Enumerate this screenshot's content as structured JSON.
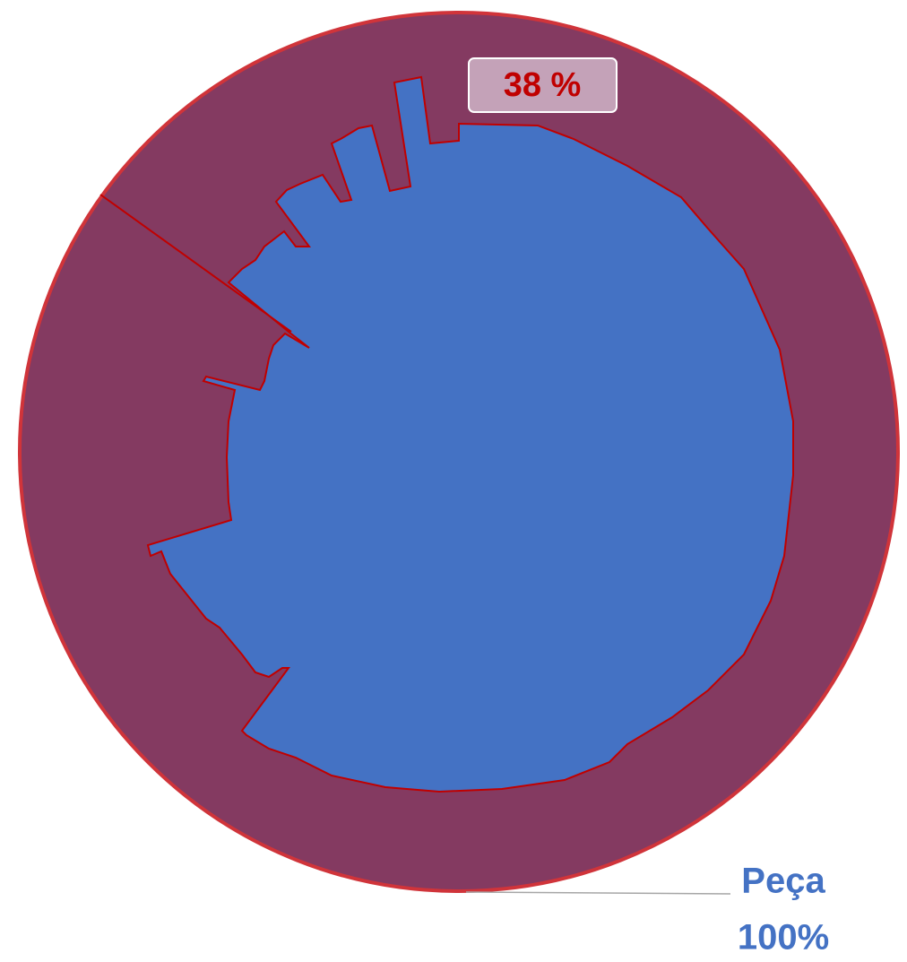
{
  "chart_data": {
    "type": "pie",
    "categories": [
      "Peça"
    ],
    "values": [
      100
    ],
    "value_labels": [
      "100%"
    ],
    "colors": [
      "#843a61"
    ],
    "annotations": [
      "38 %"
    ]
  }
}
